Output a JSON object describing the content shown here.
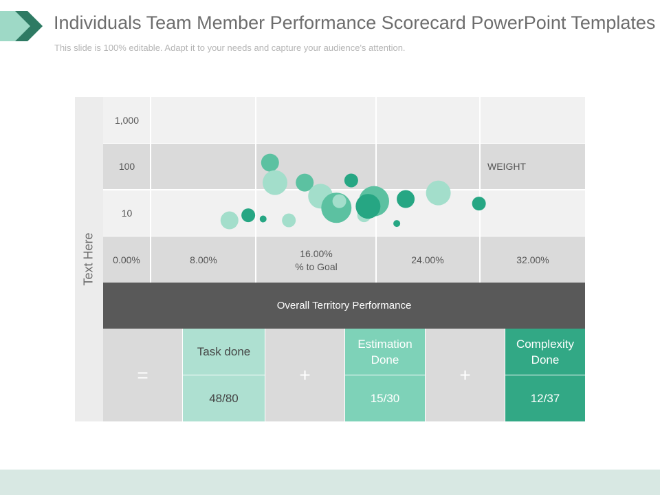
{
  "header": {
    "title": "Individuals Team Member Performance Scorecard PowerPoint  Templates",
    "subtitle": "This slide is 100% editable. Adapt it to your needs and capture your audience's attention."
  },
  "colors": {
    "logo_dark": "#2e7a63",
    "logo_light": "#9ed9c6",
    "bubble_dark": "#26a683",
    "bubble_mid": "#5cc1a1",
    "bubble_light": "#a3decb",
    "task_bg": "#aee0d1",
    "estimation_bg": "#7ed2b8",
    "complexity_bg": "#32a885",
    "footer": "#d8e8e3"
  },
  "chart_data": {
    "type": "scatter",
    "side_label": "Text Here",
    "weight_label": "WEIGHT",
    "y_ticks": [
      "1,000",
      "100",
      "10"
    ],
    "x_ticks": [
      "0.00%",
      "8.00%",
      "16.00%",
      "24.00%",
      "32.00%"
    ],
    "x_mid_label": "% to Goal",
    "points": [
      {
        "x": 14.5,
        "y": 120,
        "size": "medium",
        "color": "mid"
      },
      {
        "x": 15.0,
        "y": 45,
        "size": "large",
        "color": "light"
      },
      {
        "x": 10.4,
        "y": 7,
        "size": "medium",
        "color": "light"
      },
      {
        "x": 12.3,
        "y": 9,
        "size": "small",
        "color": "dark"
      },
      {
        "x": 13.8,
        "y": 7.5,
        "size": "tiny",
        "color": "dark"
      },
      {
        "x": 16.4,
        "y": 7,
        "size": "small",
        "color": "light"
      },
      {
        "x": 18.0,
        "y": 45,
        "size": "medium",
        "color": "mid"
      },
      {
        "x": 19.6,
        "y": 23,
        "size": "large",
        "color": "light"
      },
      {
        "x": 21.2,
        "y": 13,
        "size": "xlarge",
        "color": "mid"
      },
      {
        "x": 21.5,
        "y": 18,
        "size": "small",
        "color": "light"
      },
      {
        "x": 22.7,
        "y": 50,
        "size": "small",
        "color": "dark"
      },
      {
        "x": 24.0,
        "y": 9,
        "size": "small",
        "color": "light"
      },
      {
        "x": 25.0,
        "y": 18,
        "size": "xlarge",
        "color": "mid"
      },
      {
        "x": 24.4,
        "y": 14,
        "size": "large",
        "color": "dark"
      },
      {
        "x": 27.3,
        "y": 6,
        "size": "tiny",
        "color": "dark"
      },
      {
        "x": 28.2,
        "y": 20,
        "size": "medium",
        "color": "dark"
      },
      {
        "x": 31.5,
        "y": 27,
        "size": "large",
        "color": "light"
      },
      {
        "x": 35.6,
        "y": 16,
        "size": "small",
        "color": "dark"
      }
    ]
  },
  "summary": {
    "overall_label": "Overall Territory Performance",
    "equals_symbol": "=",
    "plus_symbol": "+",
    "kpis": [
      {
        "label": "Task done",
        "value": "48/80"
      },
      {
        "label": "Estimation\nDone",
        "value": "15/30"
      },
      {
        "label": "Complexity\nDone",
        "value": "12/37"
      }
    ]
  }
}
